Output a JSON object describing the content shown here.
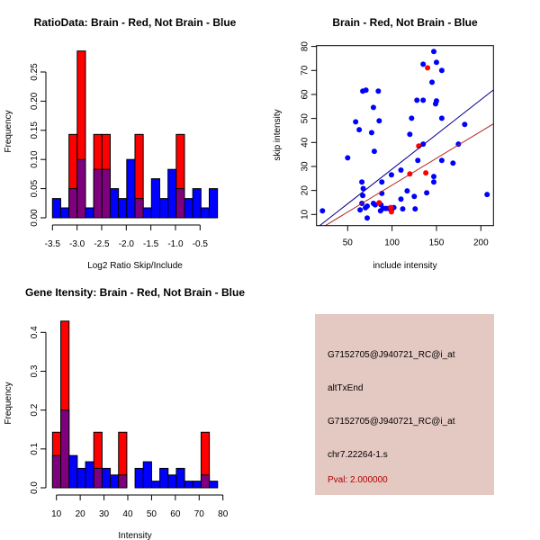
{
  "colors": {
    "brain": "#ff0000",
    "not_brain": "#0000ff",
    "overlap": "#7f007f",
    "info_bg": "#e4c8c2",
    "pval": "#b00000",
    "brain_line": "#b22222",
    "not_brain_line": "#00008b"
  },
  "chart_data": [
    {
      "type": "bar",
      "title": "RatioData: Brain - Red, Not Brain - Blue",
      "xlabel": "Log2 Ratio Skip/Include",
      "ylabel": "Frequency",
      "bin_start": -3.5,
      "bin_width": 0.1677,
      "xticks": [
        "-3.5",
        "-3.0",
        "-2.5",
        "-2.0",
        "-1.5",
        "-1.0",
        "-0.5"
      ],
      "xtick_values": [
        -3.5,
        -3.0,
        -2.5,
        -2.0,
        -1.5,
        -1.0,
        -0.5
      ],
      "yticks": [
        "0.00",
        "0.05",
        "0.10",
        "0.15",
        "0.20",
        "0.25"
      ],
      "ytick_values": [
        0,
        0.05,
        0.1,
        0.15,
        0.2,
        0.25
      ],
      "series": [
        {
          "name": "Not Brain",
          "values": [
            0.033,
            0.017,
            0.05,
            0.1,
            0.017,
            0.083,
            0.083,
            0.05,
            0.033,
            0.1,
            0.033,
            0.017,
            0.067,
            0.033,
            0.083,
            0.05,
            0.033,
            0.05,
            0.017,
            0.05
          ]
        },
        {
          "name": "Brain",
          "values": [
            0,
            0,
            0.143,
            0.286,
            0,
            0.143,
            0.143,
            0,
            0,
            0,
            0.143,
            0,
            0,
            0,
            0,
            0.143,
            0,
            0,
            0,
            0
          ]
        }
      ]
    },
    {
      "type": "scatter",
      "title": "Brain - Red, Not Brain - Blue",
      "xlabel": "include intensity",
      "ylabel": "skip intensity",
      "xlim": [
        15,
        214
      ],
      "ylim": [
        5.4,
        80.4
      ],
      "xticks": [
        "50",
        "100",
        "150",
        "200"
      ],
      "xtick_values": [
        50,
        100,
        150,
        200
      ],
      "yticks": [
        "10",
        "20",
        "30",
        "40",
        "50",
        "60",
        "70",
        "80"
      ],
      "ytick_values": [
        10,
        20,
        30,
        40,
        50,
        60,
        70,
        80
      ],
      "series": [
        {
          "name": "Not Brain",
          "points": [
            [
              21.6,
              11.5
            ],
            [
              50,
              33.6
            ],
            [
              59,
              48.6
            ],
            [
              63,
              45.3
            ],
            [
              66,
              23.5
            ],
            [
              67.5,
              20.8
            ],
            [
              67,
              17.9
            ],
            [
              66,
              14.6
            ],
            [
              64,
              11.9
            ],
            [
              67,
              61.4
            ],
            [
              70.6,
              61.8
            ],
            [
              70,
              12.8
            ],
            [
              72,
              13.5
            ],
            [
              72,
              8.5
            ],
            [
              77,
              44.1
            ],
            [
              79,
              54.6
            ],
            [
              80,
              36.3
            ],
            [
              79,
              14.6
            ],
            [
              81,
              14
            ],
            [
              84.5,
              61.4
            ],
            [
              85.5,
              49
            ],
            [
              87.5,
              14
            ],
            [
              87,
              11.5
            ],
            [
              88.5,
              23.5
            ],
            [
              88.5,
              18.8
            ],
            [
              90,
              12.5
            ],
            [
              93,
              12.5
            ],
            [
              96,
              12.5
            ],
            [
              99.3,
              26.5
            ],
            [
              99.3,
              11.9
            ],
            [
              102,
              12.9
            ],
            [
              110,
              28.5
            ],
            [
              110,
              16.4
            ],
            [
              112,
              12.3
            ],
            [
              122,
              50.1
            ],
            [
              120,
              43.4
            ],
            [
              117,
              19.8
            ],
            [
              125,
              17.5
            ],
            [
              126,
              12.3
            ],
            [
              128,
              57.6
            ],
            [
              129,
              32.5
            ],
            [
              135,
              72.6
            ],
            [
              135,
              57.6
            ],
            [
              135,
              39.3
            ],
            [
              139,
              19
            ],
            [
              145,
              65.1
            ],
            [
              147,
              77.9
            ],
            [
              147,
              25.8
            ],
            [
              147,
              23.5
            ],
            [
              150,
              73.4
            ],
            [
              150,
              57.3
            ],
            [
              149,
              56.1
            ],
            [
              156,
              70
            ],
            [
              156,
              50.1
            ],
            [
              156,
              32.5
            ],
            [
              168.6,
              31.4
            ],
            [
              174.7,
              39.3
            ],
            [
              181.8,
              47.5
            ],
            [
              207,
              18.3
            ]
          ]
        },
        {
          "name": "Brain",
          "points": [
            [
              140,
              71.1
            ],
            [
              130,
              38.5
            ],
            [
              138,
              27.3
            ],
            [
              85.5,
              14.9
            ],
            [
              98.6,
              12.9
            ],
            [
              99.3,
              11.1
            ],
            [
              120,
              26.9
            ]
          ]
        }
      ],
      "fit_lines": [
        {
          "name": "Not Brain",
          "slope": 0.289,
          "intercept": 0.0
        },
        {
          "name": "Brain",
          "slope": 0.224,
          "intercept": -0.2
        }
      ]
    },
    {
      "type": "bar",
      "title": "Gene Itensity: Brain - Red, Not Brain - Blue",
      "xlabel": "Intensity",
      "ylabel": "Frequency",
      "bin_start": 8.36,
      "bin_width": 3.47,
      "xticks": [
        "10",
        "20",
        "30",
        "40",
        "50",
        "60",
        "70",
        "80"
      ],
      "xtick_values": [
        10,
        20,
        30,
        40,
        50,
        60,
        70,
        80
      ],
      "yticks": [
        "0.0",
        "0.1",
        "0.2",
        "0.3",
        "0.4"
      ],
      "ytick_values": [
        0,
        0.1,
        0.2,
        0.3,
        0.4
      ],
      "series": [
        {
          "name": "Not Brain",
          "values": [
            0.083,
            0.2,
            0.083,
            0.05,
            0.067,
            0.05,
            0.05,
            0.033,
            0.033,
            0,
            0.05,
            0.067,
            0.017,
            0.05,
            0.033,
            0.05,
            0.017,
            0.017,
            0.033,
            0.017
          ]
        },
        {
          "name": "Brain",
          "values": [
            0.143,
            0.429,
            0,
            0,
            0,
            0.143,
            0,
            0,
            0.143,
            0,
            0,
            0,
            0,
            0,
            0,
            0,
            0,
            0,
            0.143,
            0
          ]
        }
      ]
    }
  ],
  "info": {
    "probe1": "G7152705@J940721_RC@i_at",
    "event_type": "altTxEnd",
    "probe2": "G7152705@J940721_RC@i_at",
    "locus": "chr7.22264-1.s",
    "pval": "Pval: 2.000000"
  }
}
